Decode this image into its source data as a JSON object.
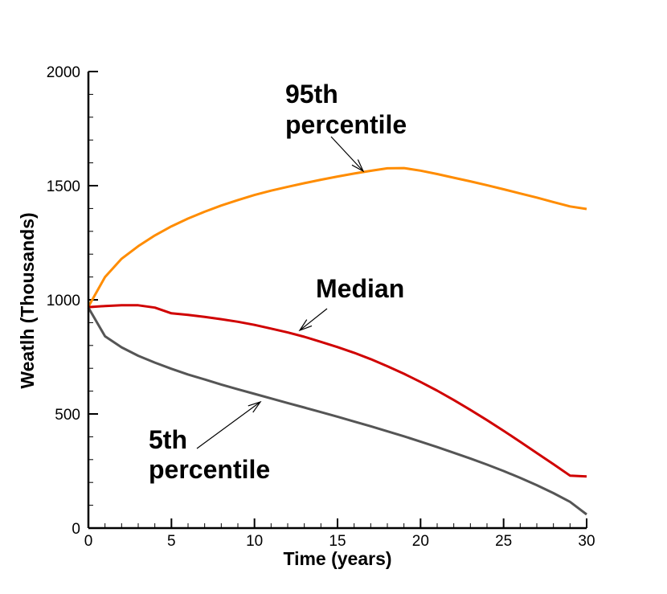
{
  "chart_data": {
    "type": "line",
    "xlabel": "Time (years)",
    "ylabel": "Weatlh (Thousands)",
    "xlim": [
      0,
      30
    ],
    "ylim": [
      0,
      2000
    ],
    "x_ticks": [
      "0",
      "5",
      "10",
      "15",
      "20",
      "25",
      "30"
    ],
    "y_ticks": [
      "0",
      "500",
      "1000",
      "1500",
      "2000"
    ],
    "grid": false,
    "series": [
      {
        "name": "95th percentile",
        "color": "#ff8c00",
        "x": [
          0,
          1,
          2,
          3,
          4,
          5,
          6,
          7,
          8,
          9,
          10,
          11,
          12,
          13,
          14,
          15,
          16,
          17,
          18,
          19,
          20,
          21,
          22,
          23,
          24,
          25,
          26,
          27,
          28,
          29,
          30
        ],
        "values": [
          970,
          1100,
          1180,
          1235,
          1282,
          1322,
          1356,
          1386,
          1413,
          1437,
          1459,
          1478,
          1495,
          1511,
          1526,
          1540,
          1553,
          1565,
          1576,
          1577,
          1566,
          1551,
          1535,
          1519,
          1502,
          1484,
          1466,
          1448,
          1428,
          1409,
          1398
        ]
      },
      {
        "name": "Median",
        "color": "#d00000",
        "x": [
          0,
          1,
          2,
          3,
          4,
          5,
          6,
          7,
          8,
          9,
          10,
          11,
          12,
          13,
          14,
          15,
          16,
          17,
          18,
          19,
          20,
          21,
          22,
          23,
          24,
          25,
          26,
          27,
          28,
          29,
          30
        ],
        "values": [
          968,
          973,
          976,
          976,
          966,
          941,
          934,
          925,
          915,
          904,
          890,
          874,
          857,
          838,
          816,
          793,
          768,
          740,
          709,
          676,
          640,
          602,
          561,
          518,
          473,
          426,
          378,
          329,
          280,
          230,
          226
        ]
      },
      {
        "name": "5th percentile",
        "color": "#555555",
        "x": [
          0,
          1,
          2,
          3,
          4,
          5,
          6,
          7,
          8,
          9,
          10,
          11,
          12,
          13,
          14,
          15,
          16,
          17,
          18,
          19,
          20,
          21,
          22,
          23,
          24,
          25,
          26,
          27,
          28,
          29,
          30
        ],
        "values": [
          966,
          840,
          792,
          755,
          725,
          698,
          673,
          651,
          629,
          608,
          588,
          568,
          548,
          528,
          508,
          488,
          467,
          446,
          424,
          402,
          379,
          355,
          330,
          305,
          278,
          250,
          220,
          188,
          153,
          115,
          60
        ]
      }
    ],
    "annotations": [
      {
        "lines": [
          "95th",
          "percentile"
        ],
        "series": "95th percentile"
      },
      {
        "lines": [
          "Median"
        ],
        "series": "Median"
      },
      {
        "lines": [
          "5th",
          "percentile"
        ],
        "series": "5th percentile"
      }
    ]
  }
}
